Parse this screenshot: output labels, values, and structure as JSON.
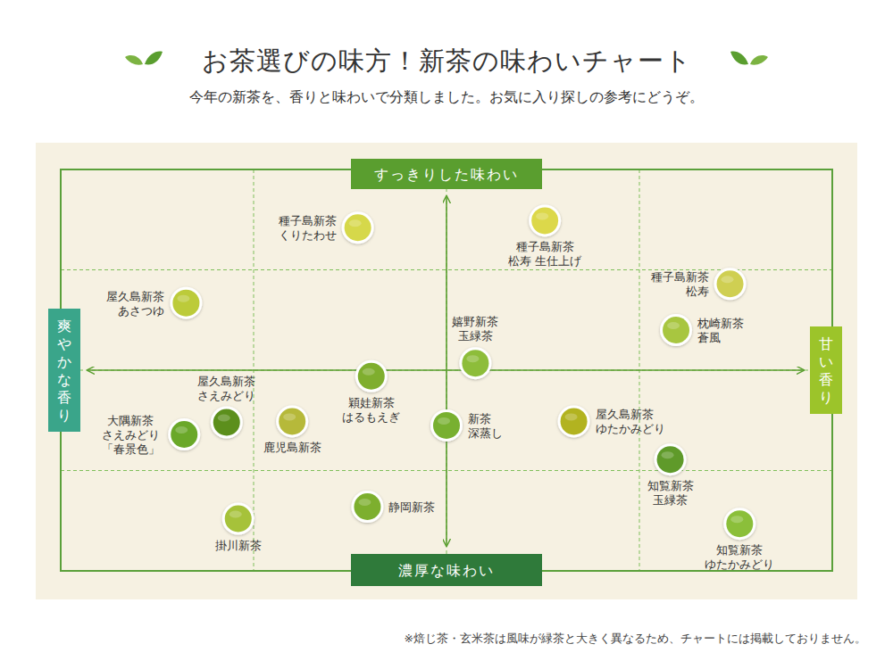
{
  "chart_data": {
    "type": "scatter",
    "title": "お茶選びの味方！新茶の味わいチャート",
    "subtitle": "今年の新茶を、香りと味わいで分類しました。お気に入り探しの参考にどうぞ。",
    "footnote": "※焙じ茶・玄米茶は風味が緑茶と大きく異なるため、チャートには掲載しておりません。",
    "axis_labels": {
      "top": "すっきりした味わい",
      "bottom": "濃厚な味わい",
      "left": "爽やかな香り",
      "right": "甘い香り"
    },
    "labels": [
      "種子島新茶\nくりたわせ",
      "種子島新茶\n松寿 生仕上げ",
      "種子島新茶\n松寿",
      "枕崎新茶\n蒼風",
      "屋久島新茶\nあさつゆ",
      "嬉野新茶\n玉緑茶",
      "穎娃新茶\nはるもえぎ",
      "屋久島新茶\nさえみどり",
      "大隅新茶\nさえみどり\n「春景色」",
      "鹿児島新茶",
      "新茶\n深蒸し",
      "屋久島新茶\nゆたかみどり",
      "知覧新茶\n玉緑茶",
      "知覧新茶\nゆたかみどり",
      "静岡新茶",
      "掛川新茶"
    ],
    "x": [
      -0.46,
      0.51,
      1.47,
      1.19,
      -1.35,
      0.15,
      -0.39,
      -1.14,
      -1.36,
      -0.8,
      0.0,
      0.66,
      1.16,
      1.52,
      -0.41,
      -1.08
    ],
    "y": [
      1.42,
      1.49,
      0.86,
      0.4,
      0.67,
      0.07,
      -0.06,
      -0.52,
      -0.64,
      -0.51,
      -0.55,
      -0.51,
      -0.89,
      -1.53,
      -1.36,
      -1.48
    ],
    "colors": [
      "#d6d84a",
      "#dcd84a",
      "#cfcf52",
      "#a8c640",
      "#bccb3a",
      "#8dbd3a",
      "#7fae2e",
      "#5c8f1c",
      "#6aa829",
      "#b6b93a",
      "#78b030",
      "#b2b320",
      "#5f9a2a",
      "#8bbf3a",
      "#7daf2e",
      "#a6c23a"
    ],
    "xlim": [
      -2,
      2
    ],
    "ylim": [
      -2,
      2
    ],
    "xticks": [
      -2,
      -1,
      0,
      1,
      2
    ],
    "yticks": [
      -2,
      -1,
      0,
      1,
      2
    ],
    "grid": true,
    "tick_labels": false
  }
}
